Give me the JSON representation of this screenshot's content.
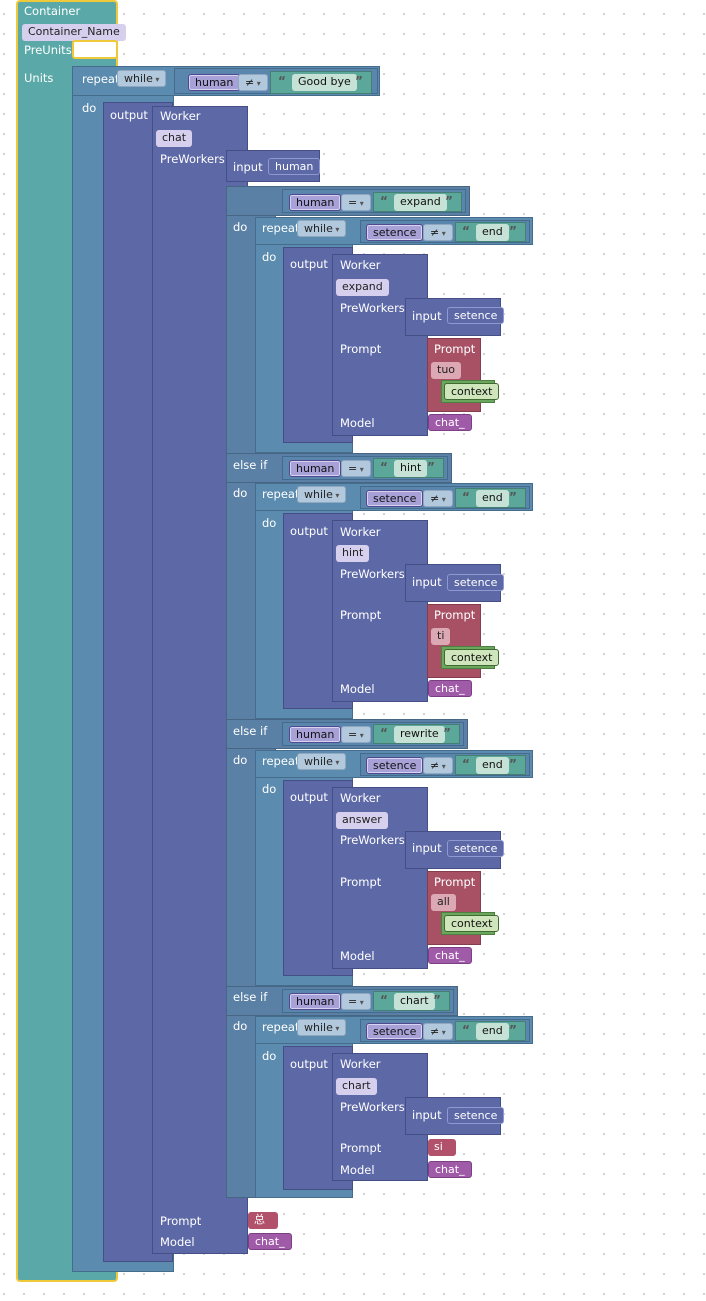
{
  "container": {
    "title": "Container",
    "name_field": "Container_Name",
    "pre_units_label": "PreUnits",
    "units_label": "Units"
  },
  "labels": {
    "repeat": "repeat",
    "while": "while",
    "do": "do",
    "output": "output",
    "worker": "Worker",
    "preworkers": "PreWorkers",
    "input": "input",
    "prompt": "Prompt",
    "model": "Model",
    "if": "if",
    "else_if": "else if",
    "context": "context",
    "quote_open": "“",
    "quote_close": "”"
  },
  "outer_loop": {
    "var": "human",
    "op": "≠",
    "text": "Good bye",
    "worker_name": "chat",
    "input_var": "human",
    "prompt_value": "总",
    "model_value": "chat_"
  },
  "branches": [
    {
      "cond_var": "human",
      "cond_op": "=",
      "cond_text": "expand",
      "loop_var": "setence",
      "loop_op": "≠",
      "loop_text": "end",
      "worker_name": "expand",
      "input_var": "setence",
      "prompt_block_label": "Prompt",
      "prompt_text": "tuo",
      "prompt_context": "context",
      "model_value": "chat_"
    },
    {
      "cond_var": "human",
      "cond_op": "=",
      "cond_text": "hint",
      "loop_var": "setence",
      "loop_op": "≠",
      "loop_text": "end",
      "worker_name": "hint",
      "input_var": "setence",
      "prompt_block_label": "Prompt",
      "prompt_text": "ti",
      "prompt_context": "context",
      "model_value": "chat_"
    },
    {
      "cond_var": "human",
      "cond_op": "=",
      "cond_text": "rewrite",
      "loop_var": "setence",
      "loop_op": "≠",
      "loop_text": "end",
      "worker_name": "answer",
      "input_var": "setence",
      "prompt_block_label": "Prompt",
      "prompt_text": "all",
      "prompt_context": "context",
      "model_value": "chat_"
    },
    {
      "cond_var": "human",
      "cond_op": "=",
      "cond_text": "chart",
      "loop_var": "setence",
      "loop_op": "≠",
      "loop_text": "end",
      "worker_name": "chart",
      "input_var": "setence",
      "prompt_value": "si",
      "model_value": "chat_"
    }
  ],
  "icons": {
    "gear": "gear-icon",
    "dropdown": "chevron-down-icon"
  },
  "colors": {
    "container": "#5ba8a8",
    "highlight": "#f0c93a",
    "loop": "#5b8bae",
    "logic": "#5b80a5",
    "worker": "#5d68a6",
    "prompt": "#a85165",
    "context": "#6aa65b",
    "model": "#a05ba8"
  }
}
